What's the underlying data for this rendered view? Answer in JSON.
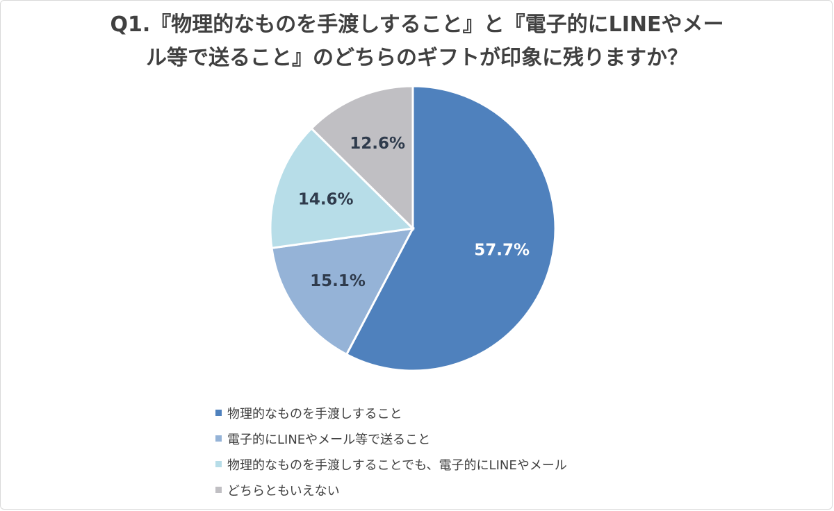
{
  "chart_data": {
    "type": "pie",
    "title_lines": [
      "Q1.『物理的なものを手渡しすること』と『電子的にLINEやメー",
      "ル等で送ること』のどちらのギフトが印象に残りますか？"
    ],
    "slices": [
      {
        "label": "物理的なものを手渡しすること",
        "value": 57.7,
        "display": "57.7%",
        "color": "#4f81bd",
        "label_color": "#ffffff"
      },
      {
        "label": "電子的にLINEやメール等で送ること",
        "value": 15.1,
        "display": "15.1%",
        "color": "#95b3d7",
        "label_color": "#2f3b4c"
      },
      {
        "label": "物理的なものを手渡しすることでも、電子的にLINEやメール",
        "value": 14.6,
        "display": "14.6%",
        "color": "#b7dde8",
        "label_color": "#2f3b4c"
      },
      {
        "label": "どちらともいえない",
        "value": 12.6,
        "display": "12.6%",
        "color": "#c0bfc3",
        "label_color": "#2f3b4c"
      }
    ],
    "start_angle": "12 o'clock",
    "direction": "clockwise",
    "legend_position": "bottom"
  }
}
